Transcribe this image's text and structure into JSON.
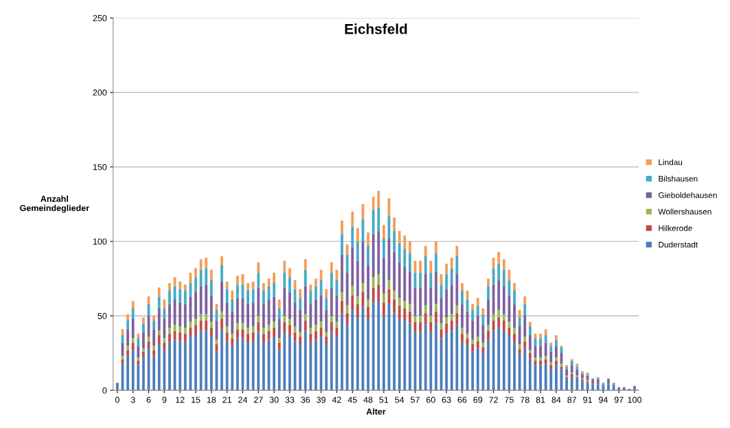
{
  "chart_data": {
    "type": "bar",
    "stacked": true,
    "title": "Eichsfeld",
    "xlabel": "Alter",
    "ylabel": "Anzahl\nGemeindeglieder",
    "categories": [
      "0",
      null,
      null,
      "3",
      null,
      null,
      "6",
      null,
      null,
      "9",
      null,
      null,
      "12",
      null,
      null,
      "15",
      null,
      null,
      "18",
      null,
      null,
      "21",
      null,
      null,
      "24",
      null,
      null,
      "27",
      null,
      null,
      "30",
      null,
      null,
      "33",
      null,
      null,
      "36",
      null,
      null,
      "39",
      null,
      null,
      "42",
      null,
      null,
      "45",
      null,
      null,
      "48",
      null,
      null,
      "51",
      null,
      null,
      "54",
      null,
      null,
      "57",
      null,
      null,
      "60",
      null,
      null,
      "63",
      null,
      null,
      "66",
      null,
      null,
      "69",
      null,
      null,
      "72",
      null,
      null,
      "75",
      null,
      null,
      "78",
      null,
      null,
      "81",
      null,
      null,
      "84",
      null,
      null,
      "87",
      null,
      null,
      "91",
      null,
      null,
      "94",
      null,
      null,
      "97",
      null,
      null,
      "100"
    ],
    "ylim": [
      0,
      250
    ],
    "yticks": [
      0,
      50,
      100,
      150,
      200,
      250
    ],
    "grid": "y",
    "legend": "right",
    "series": [
      {
        "name": "Duderstadt",
        "color": "#4a7ebb",
        "values": [
          5,
          18,
          23,
          27,
          17,
          22,
          28,
          23,
          31,
          27,
          32,
          34,
          33,
          32,
          36,
          37,
          40,
          40,
          36,
          26,
          41,
          33,
          30,
          35,
          35,
          32,
          33,
          39,
          32,
          34,
          36,
          27,
          39,
          37,
          33,
          31,
          40,
          32,
          34,
          36,
          31,
          39,
          36,
          51,
          44,
          54,
          49,
          56,
          48,
          59,
          60,
          50,
          58,
          52,
          48,
          47,
          45,
          39,
          39,
          44,
          39,
          45,
          35,
          38,
          40,
          44,
          32,
          30,
          26,
          28,
          25,
          34,
          40,
          42,
          40,
          36,
          32,
          24,
          28,
          21,
          17,
          17,
          18,
          14,
          17,
          14,
          8,
          9,
          8,
          6,
          5,
          4,
          4,
          3,
          4,
          3,
          1,
          1,
          1,
          2
        ]
      },
      {
        "name": "Hilkerode",
        "color": "#be4b48",
        "values": [
          0,
          3,
          4,
          5,
          3,
          4,
          5,
          4,
          6,
          5,
          6,
          6,
          6,
          6,
          6,
          7,
          7,
          7,
          6,
          5,
          7,
          6,
          5,
          6,
          6,
          6,
          6,
          7,
          6,
          6,
          6,
          5,
          7,
          7,
          6,
          5,
          7,
          6,
          6,
          6,
          5,
          7,
          6,
          9,
          8,
          10,
          9,
          10,
          8,
          10,
          11,
          9,
          10,
          9,
          9,
          8,
          8,
          7,
          7,
          8,
          7,
          8,
          6,
          7,
          7,
          8,
          6,
          5,
          5,
          5,
          4,
          6,
          7,
          7,
          7,
          6,
          6,
          4,
          5,
          4,
          3,
          3,
          3,
          3,
          3,
          2,
          1,
          2,
          1,
          1,
          1,
          1,
          1,
          0,
          1,
          0,
          0,
          0,
          0,
          0
        ]
      },
      {
        "name": "Wollershausen",
        "color": "#98b954",
        "values": [
          0,
          2,
          3,
          3,
          2,
          2,
          3,
          3,
          3,
          3,
          4,
          4,
          4,
          4,
          4,
          4,
          4,
          4,
          4,
          3,
          5,
          4,
          3,
          4,
          4,
          4,
          4,
          4,
          4,
          4,
          4,
          3,
          4,
          4,
          4,
          3,
          4,
          4,
          4,
          4,
          3,
          4,
          4,
          6,
          5,
          6,
          5,
          6,
          5,
          7,
          7,
          6,
          6,
          6,
          5,
          5,
          5,
          4,
          4,
          5,
          4,
          5,
          4,
          4,
          4,
          5,
          4,
          3,
          3,
          3,
          3,
          4,
          4,
          5,
          4,
          4,
          4,
          3,
          3,
          2,
          2,
          2,
          2,
          2,
          2,
          2,
          1,
          1,
          1,
          1,
          1,
          0,
          0,
          0,
          0,
          0,
          0,
          0,
          0,
          0
        ]
      },
      {
        "name": "Gieboldehausen",
        "color": "#7d60a0",
        "values": [
          0,
          9,
          11,
          13,
          8,
          11,
          14,
          11,
          15,
          13,
          16,
          17,
          16,
          16,
          17,
          18,
          19,
          20,
          18,
          13,
          20,
          16,
          15,
          17,
          17,
          16,
          16,
          19,
          16,
          17,
          17,
          13,
          19,
          18,
          16,
          15,
          19,
          16,
          17,
          18,
          15,
          19,
          18,
          25,
          22,
          26,
          24,
          28,
          23,
          29,
          29,
          24,
          28,
          26,
          24,
          23,
          22,
          19,
          19,
          21,
          19,
          22,
          17,
          19,
          20,
          21,
          16,
          15,
          13,
          14,
          12,
          17,
          20,
          20,
          19,
          18,
          16,
          12,
          14,
          10,
          8,
          8,
          9,
          7,
          8,
          7,
          4,
          5,
          4,
          3,
          3,
          2,
          2,
          1,
          2,
          1,
          1,
          1,
          0,
          1
        ]
      },
      {
        "name": "Bilshausen",
        "color": "#46aac5",
        "values": [
          0,
          5,
          6,
          7,
          5,
          6,
          8,
          6,
          8,
          7,
          9,
          9,
          9,
          9,
          9,
          10,
          11,
          11,
          10,
          7,
          11,
          9,
          8,
          9,
          9,
          9,
          9,
          10,
          9,
          9,
          9,
          7,
          10,
          10,
          9,
          8,
          11,
          9,
          9,
          10,
          8,
          10,
          10,
          14,
          12,
          14,
          13,
          15,
          13,
          16,
          16,
          13,
          15,
          14,
          13,
          12,
          12,
          10,
          10,
          12,
          10,
          12,
          9,
          10,
          11,
          12,
          9,
          8,
          7,
          7,
          7,
          9,
          11,
          11,
          11,
          10,
          9,
          6,
          8,
          6,
          5,
          5,
          5,
          4,
          4,
          4,
          2,
          3,
          2,
          1,
          1,
          1,
          1,
          1,
          1,
          1,
          0,
          0,
          0,
          0
        ]
      },
      {
        "name": "Lindau",
        "color": "#f59d56",
        "values": [
          0,
          4,
          4,
          5,
          3,
          4,
          5,
          3,
          6,
          6,
          5,
          6,
          5,
          4,
          7,
          6,
          7,
          7,
          7,
          4,
          6,
          5,
          6,
          6,
          7,
          5,
          5,
          7,
          5,
          5,
          7,
          6,
          8,
          6,
          6,
          6,
          7,
          4,
          5,
          7,
          6,
          7,
          7,
          9,
          7,
          10,
          9,
          10,
          9,
          9,
          11,
          9,
          12,
          9,
          8,
          9,
          8,
          8,
          8,
          7,
          8,
          8,
          7,
          7,
          7,
          7,
          5,
          6,
          4,
          5,
          4,
          5,
          7,
          8,
          7,
          7,
          5,
          5,
          5,
          3,
          3,
          3,
          4,
          2,
          3,
          1,
          1,
          1,
          2,
          1,
          1,
          0,
          1,
          0,
          0,
          0,
          0,
          0,
          0,
          0
        ]
      }
    ]
  }
}
